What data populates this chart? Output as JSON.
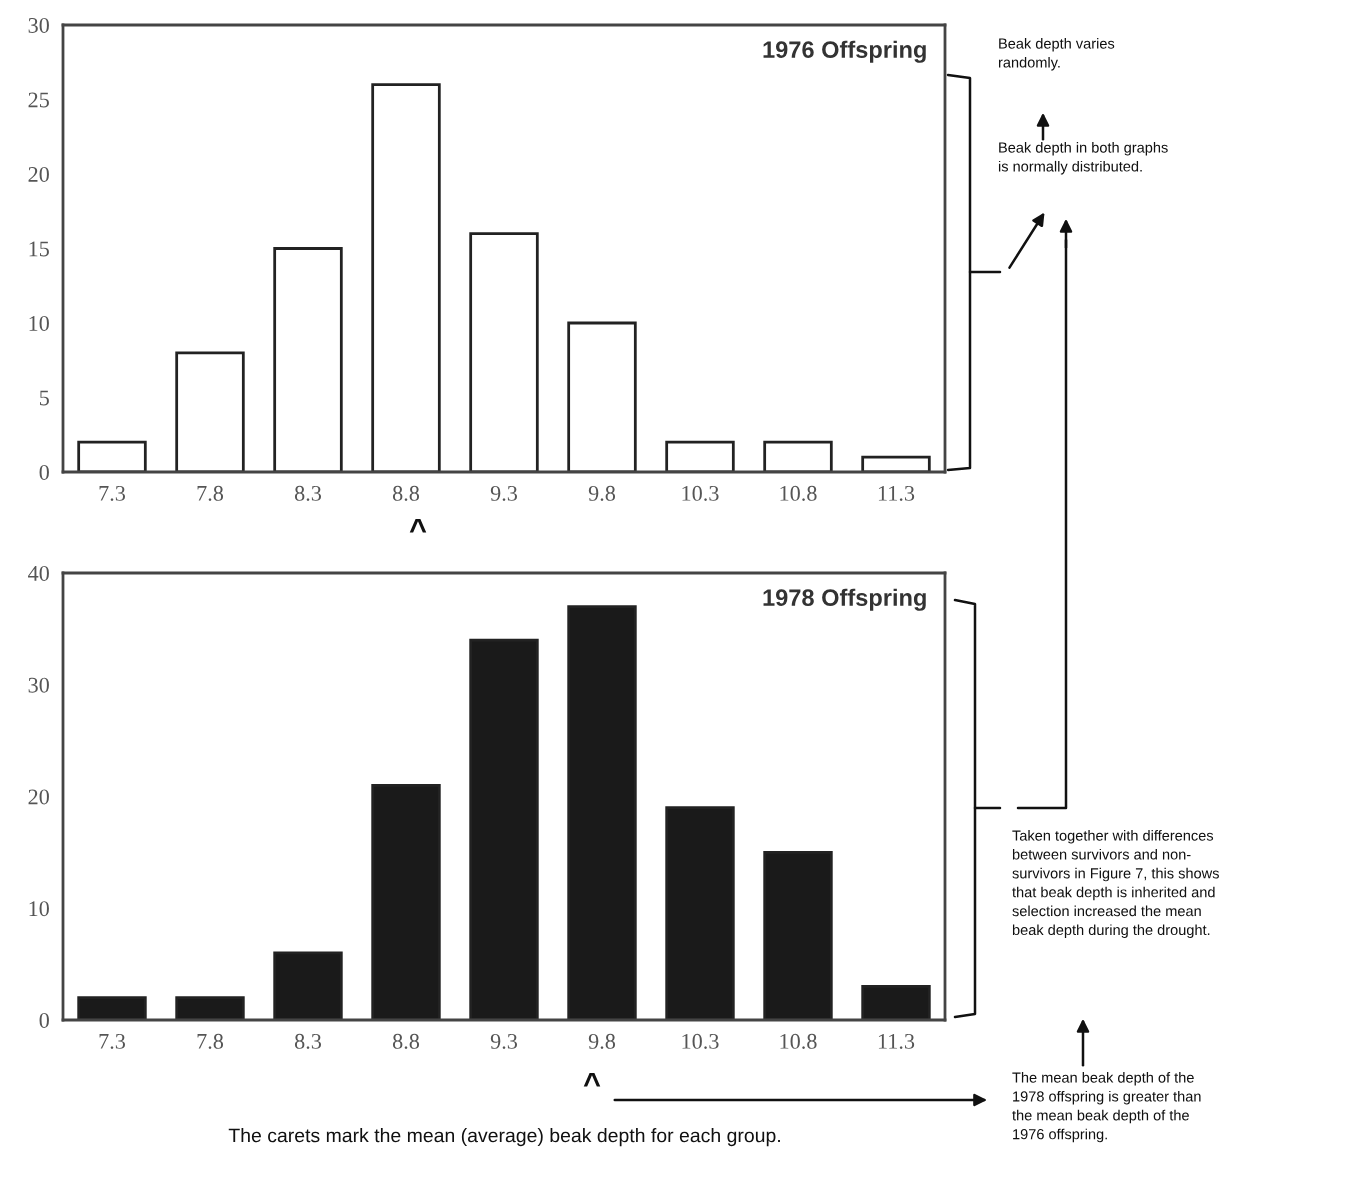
{
  "chart_data": [
    {
      "type": "bar",
      "title": "1976 Offspring",
      "categories": [
        "7.3",
        "7.8",
        "8.3",
        "8.8",
        "9.3",
        "9.8",
        "10.3",
        "10.8",
        "11.3"
      ],
      "series": [
        {
          "color": "#ffffff",
          "values": [
            2,
            8,
            15,
            26,
            16,
            10,
            2,
            2,
            1
          ]
        }
      ],
      "ylim": [
        0,
        30
      ],
      "yticks": [
        0,
        5,
        10,
        15,
        20,
        25,
        30
      ],
      "annotations": [
        "^",
        "Beak depth varies\nrandomly.",
        "Beak depth in both graphs\nis normally distributed."
      ]
    },
    {
      "type": "bar",
      "title": "1978 Offspring",
      "categories": [
        "7.3",
        "7.8",
        "8.3",
        "8.8",
        "9.3",
        "9.8",
        "10.3",
        "10.8",
        "11.3"
      ],
      "series": [
        {
          "color": "#1a1a1a",
          "values": [
            2,
            2,
            6,
            21,
            34,
            37,
            19,
            15,
            3
          ]
        }
      ],
      "ylim": [
        0,
        40
      ],
      "yticks": [
        0,
        10,
        20,
        30,
        40
      ],
      "annotations": [
        "^",
        "Taken together with differences\nbetween survivors and non-\nsurvivors in Figure 7, this shows\nthat beak depth is inherited and\nselection increased the mean\nbeak depth during the drought.",
        "The mean beak depth of the\n1978 offspring is greater than\nthe mean beak depth of the\n1976 offspring.",
        "The carets mark the mean (average) beak depth for each group."
      ]
    }
  ]
}
